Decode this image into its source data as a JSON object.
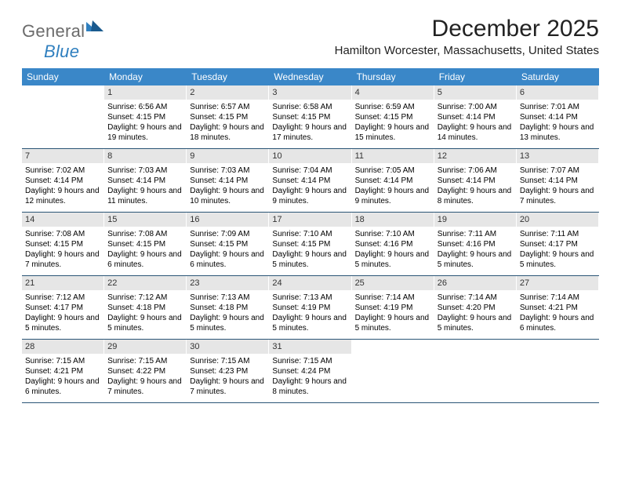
{
  "logo": {
    "text_general": "General",
    "text_blue": "Blue"
  },
  "header": {
    "title": "December 2025",
    "location": "Hamilton Worcester, Massachusetts, United States"
  },
  "colors": {
    "header_bg": "#3a87c8",
    "header_text": "#ffffff",
    "daynum_bg": "#e6e6e6",
    "row_border": "#2b5576",
    "logo_gray": "#6b6b6b",
    "logo_blue": "#2f7fbf"
  },
  "weekdays": [
    "Sunday",
    "Monday",
    "Tuesday",
    "Wednesday",
    "Thursday",
    "Friday",
    "Saturday"
  ],
  "weeks": [
    [
      {
        "day": "",
        "lines": []
      },
      {
        "day": "1",
        "lines": [
          "Sunrise: 6:56 AM",
          "Sunset: 4:15 PM",
          "Daylight: 9 hours and 19 minutes."
        ]
      },
      {
        "day": "2",
        "lines": [
          "Sunrise: 6:57 AM",
          "Sunset: 4:15 PM",
          "Daylight: 9 hours and 18 minutes."
        ]
      },
      {
        "day": "3",
        "lines": [
          "Sunrise: 6:58 AM",
          "Sunset: 4:15 PM",
          "Daylight: 9 hours and 17 minutes."
        ]
      },
      {
        "day": "4",
        "lines": [
          "Sunrise: 6:59 AM",
          "Sunset: 4:15 PM",
          "Daylight: 9 hours and 15 minutes."
        ]
      },
      {
        "day": "5",
        "lines": [
          "Sunrise: 7:00 AM",
          "Sunset: 4:14 PM",
          "Daylight: 9 hours and 14 minutes."
        ]
      },
      {
        "day": "6",
        "lines": [
          "Sunrise: 7:01 AM",
          "Sunset: 4:14 PM",
          "Daylight: 9 hours and 13 minutes."
        ]
      }
    ],
    [
      {
        "day": "7",
        "lines": [
          "Sunrise: 7:02 AM",
          "Sunset: 4:14 PM",
          "Daylight: 9 hours and 12 minutes."
        ]
      },
      {
        "day": "8",
        "lines": [
          "Sunrise: 7:03 AM",
          "Sunset: 4:14 PM",
          "Daylight: 9 hours and 11 minutes."
        ]
      },
      {
        "day": "9",
        "lines": [
          "Sunrise: 7:03 AM",
          "Sunset: 4:14 PM",
          "Daylight: 9 hours and 10 minutes."
        ]
      },
      {
        "day": "10",
        "lines": [
          "Sunrise: 7:04 AM",
          "Sunset: 4:14 PM",
          "Daylight: 9 hours and 9 minutes."
        ]
      },
      {
        "day": "11",
        "lines": [
          "Sunrise: 7:05 AM",
          "Sunset: 4:14 PM",
          "Daylight: 9 hours and 9 minutes."
        ]
      },
      {
        "day": "12",
        "lines": [
          "Sunrise: 7:06 AM",
          "Sunset: 4:14 PM",
          "Daylight: 9 hours and 8 minutes."
        ]
      },
      {
        "day": "13",
        "lines": [
          "Sunrise: 7:07 AM",
          "Sunset: 4:14 PM",
          "Daylight: 9 hours and 7 minutes."
        ]
      }
    ],
    [
      {
        "day": "14",
        "lines": [
          "Sunrise: 7:08 AM",
          "Sunset: 4:15 PM",
          "Daylight: 9 hours and 7 minutes."
        ]
      },
      {
        "day": "15",
        "lines": [
          "Sunrise: 7:08 AM",
          "Sunset: 4:15 PM",
          "Daylight: 9 hours and 6 minutes."
        ]
      },
      {
        "day": "16",
        "lines": [
          "Sunrise: 7:09 AM",
          "Sunset: 4:15 PM",
          "Daylight: 9 hours and 6 minutes."
        ]
      },
      {
        "day": "17",
        "lines": [
          "Sunrise: 7:10 AM",
          "Sunset: 4:15 PM",
          "Daylight: 9 hours and 5 minutes."
        ]
      },
      {
        "day": "18",
        "lines": [
          "Sunrise: 7:10 AM",
          "Sunset: 4:16 PM",
          "Daylight: 9 hours and 5 minutes."
        ]
      },
      {
        "day": "19",
        "lines": [
          "Sunrise: 7:11 AM",
          "Sunset: 4:16 PM",
          "Daylight: 9 hours and 5 minutes."
        ]
      },
      {
        "day": "20",
        "lines": [
          "Sunrise: 7:11 AM",
          "Sunset: 4:17 PM",
          "Daylight: 9 hours and 5 minutes."
        ]
      }
    ],
    [
      {
        "day": "21",
        "lines": [
          "Sunrise: 7:12 AM",
          "Sunset: 4:17 PM",
          "Daylight: 9 hours and 5 minutes."
        ]
      },
      {
        "day": "22",
        "lines": [
          "Sunrise: 7:12 AM",
          "Sunset: 4:18 PM",
          "Daylight: 9 hours and 5 minutes."
        ]
      },
      {
        "day": "23",
        "lines": [
          "Sunrise: 7:13 AM",
          "Sunset: 4:18 PM",
          "Daylight: 9 hours and 5 minutes."
        ]
      },
      {
        "day": "24",
        "lines": [
          "Sunrise: 7:13 AM",
          "Sunset: 4:19 PM",
          "Daylight: 9 hours and 5 minutes."
        ]
      },
      {
        "day": "25",
        "lines": [
          "Sunrise: 7:14 AM",
          "Sunset: 4:19 PM",
          "Daylight: 9 hours and 5 minutes."
        ]
      },
      {
        "day": "26",
        "lines": [
          "Sunrise: 7:14 AM",
          "Sunset: 4:20 PM",
          "Daylight: 9 hours and 5 minutes."
        ]
      },
      {
        "day": "27",
        "lines": [
          "Sunrise: 7:14 AM",
          "Sunset: 4:21 PM",
          "Daylight: 9 hours and 6 minutes."
        ]
      }
    ],
    [
      {
        "day": "28",
        "lines": [
          "Sunrise: 7:15 AM",
          "Sunset: 4:21 PM",
          "Daylight: 9 hours and 6 minutes."
        ]
      },
      {
        "day": "29",
        "lines": [
          "Sunrise: 7:15 AM",
          "Sunset: 4:22 PM",
          "Daylight: 9 hours and 7 minutes."
        ]
      },
      {
        "day": "30",
        "lines": [
          "Sunrise: 7:15 AM",
          "Sunset: 4:23 PM",
          "Daylight: 9 hours and 7 minutes."
        ]
      },
      {
        "day": "31",
        "lines": [
          "Sunrise: 7:15 AM",
          "Sunset: 4:24 PM",
          "Daylight: 9 hours and 8 minutes."
        ]
      },
      {
        "day": "",
        "lines": []
      },
      {
        "day": "",
        "lines": []
      },
      {
        "day": "",
        "lines": []
      }
    ]
  ]
}
